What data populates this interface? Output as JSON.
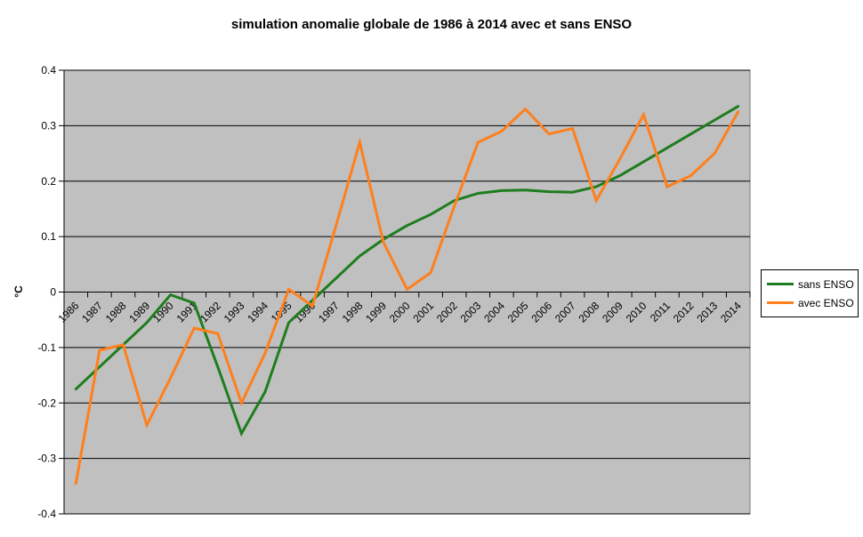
{
  "title": "simulation anomalie globale de 1986 à 2014 avec et sans ENSO",
  "y_axis_title": "°C",
  "chart_data": {
    "type": "line",
    "categories": [
      "1986",
      "1987",
      "1988",
      "1989",
      "1990",
      "1991",
      "1992",
      "1993",
      "1994",
      "1995",
      "1996",
      "1997",
      "1998",
      "1999",
      "2000",
      "2001",
      "2002",
      "2003",
      "2004",
      "2005",
      "2006",
      "2007",
      "2008",
      "2009",
      "2010",
      "2011",
      "2012",
      "2013",
      "2014"
    ],
    "series": [
      {
        "name": "sans ENSO",
        "color": "#1E7D1E",
        "values": [
          -0.175,
          -0.135,
          -0.095,
          -0.055,
          -0.005,
          -0.02,
          -0.135,
          -0.255,
          -0.18,
          -0.055,
          -0.015,
          0.025,
          0.065,
          0.095,
          0.12,
          0.14,
          0.165,
          0.178,
          0.183,
          0.184,
          0.181,
          0.18,
          0.19,
          0.21,
          0.235,
          0.26,
          0.285,
          0.31,
          0.335
        ]
      },
      {
        "name": "avec ENSO",
        "color": "#FF7F1C",
        "values": [
          -0.345,
          -0.105,
          -0.095,
          -0.24,
          -0.155,
          -0.065,
          -0.075,
          -0.2,
          -0.11,
          0.005,
          -0.025,
          0.12,
          0.27,
          0.09,
          0.005,
          0.035,
          0.155,
          0.27,
          0.29,
          0.33,
          0.285,
          0.295,
          0.165,
          0.24,
          0.32,
          0.19,
          0.21,
          0.25,
          0.325
        ]
      }
    ],
    "xlabel": "",
    "ylabel": "°C",
    "ylim": [
      -0.4,
      0.4
    ],
    "ytick_step": 0.1,
    "grid": true,
    "legend_position": "right",
    "plot_bg": "#C0C0C0",
    "gridline_color": "#000000",
    "plot_border_color": "#777777",
    "axis_color": "#000000"
  }
}
